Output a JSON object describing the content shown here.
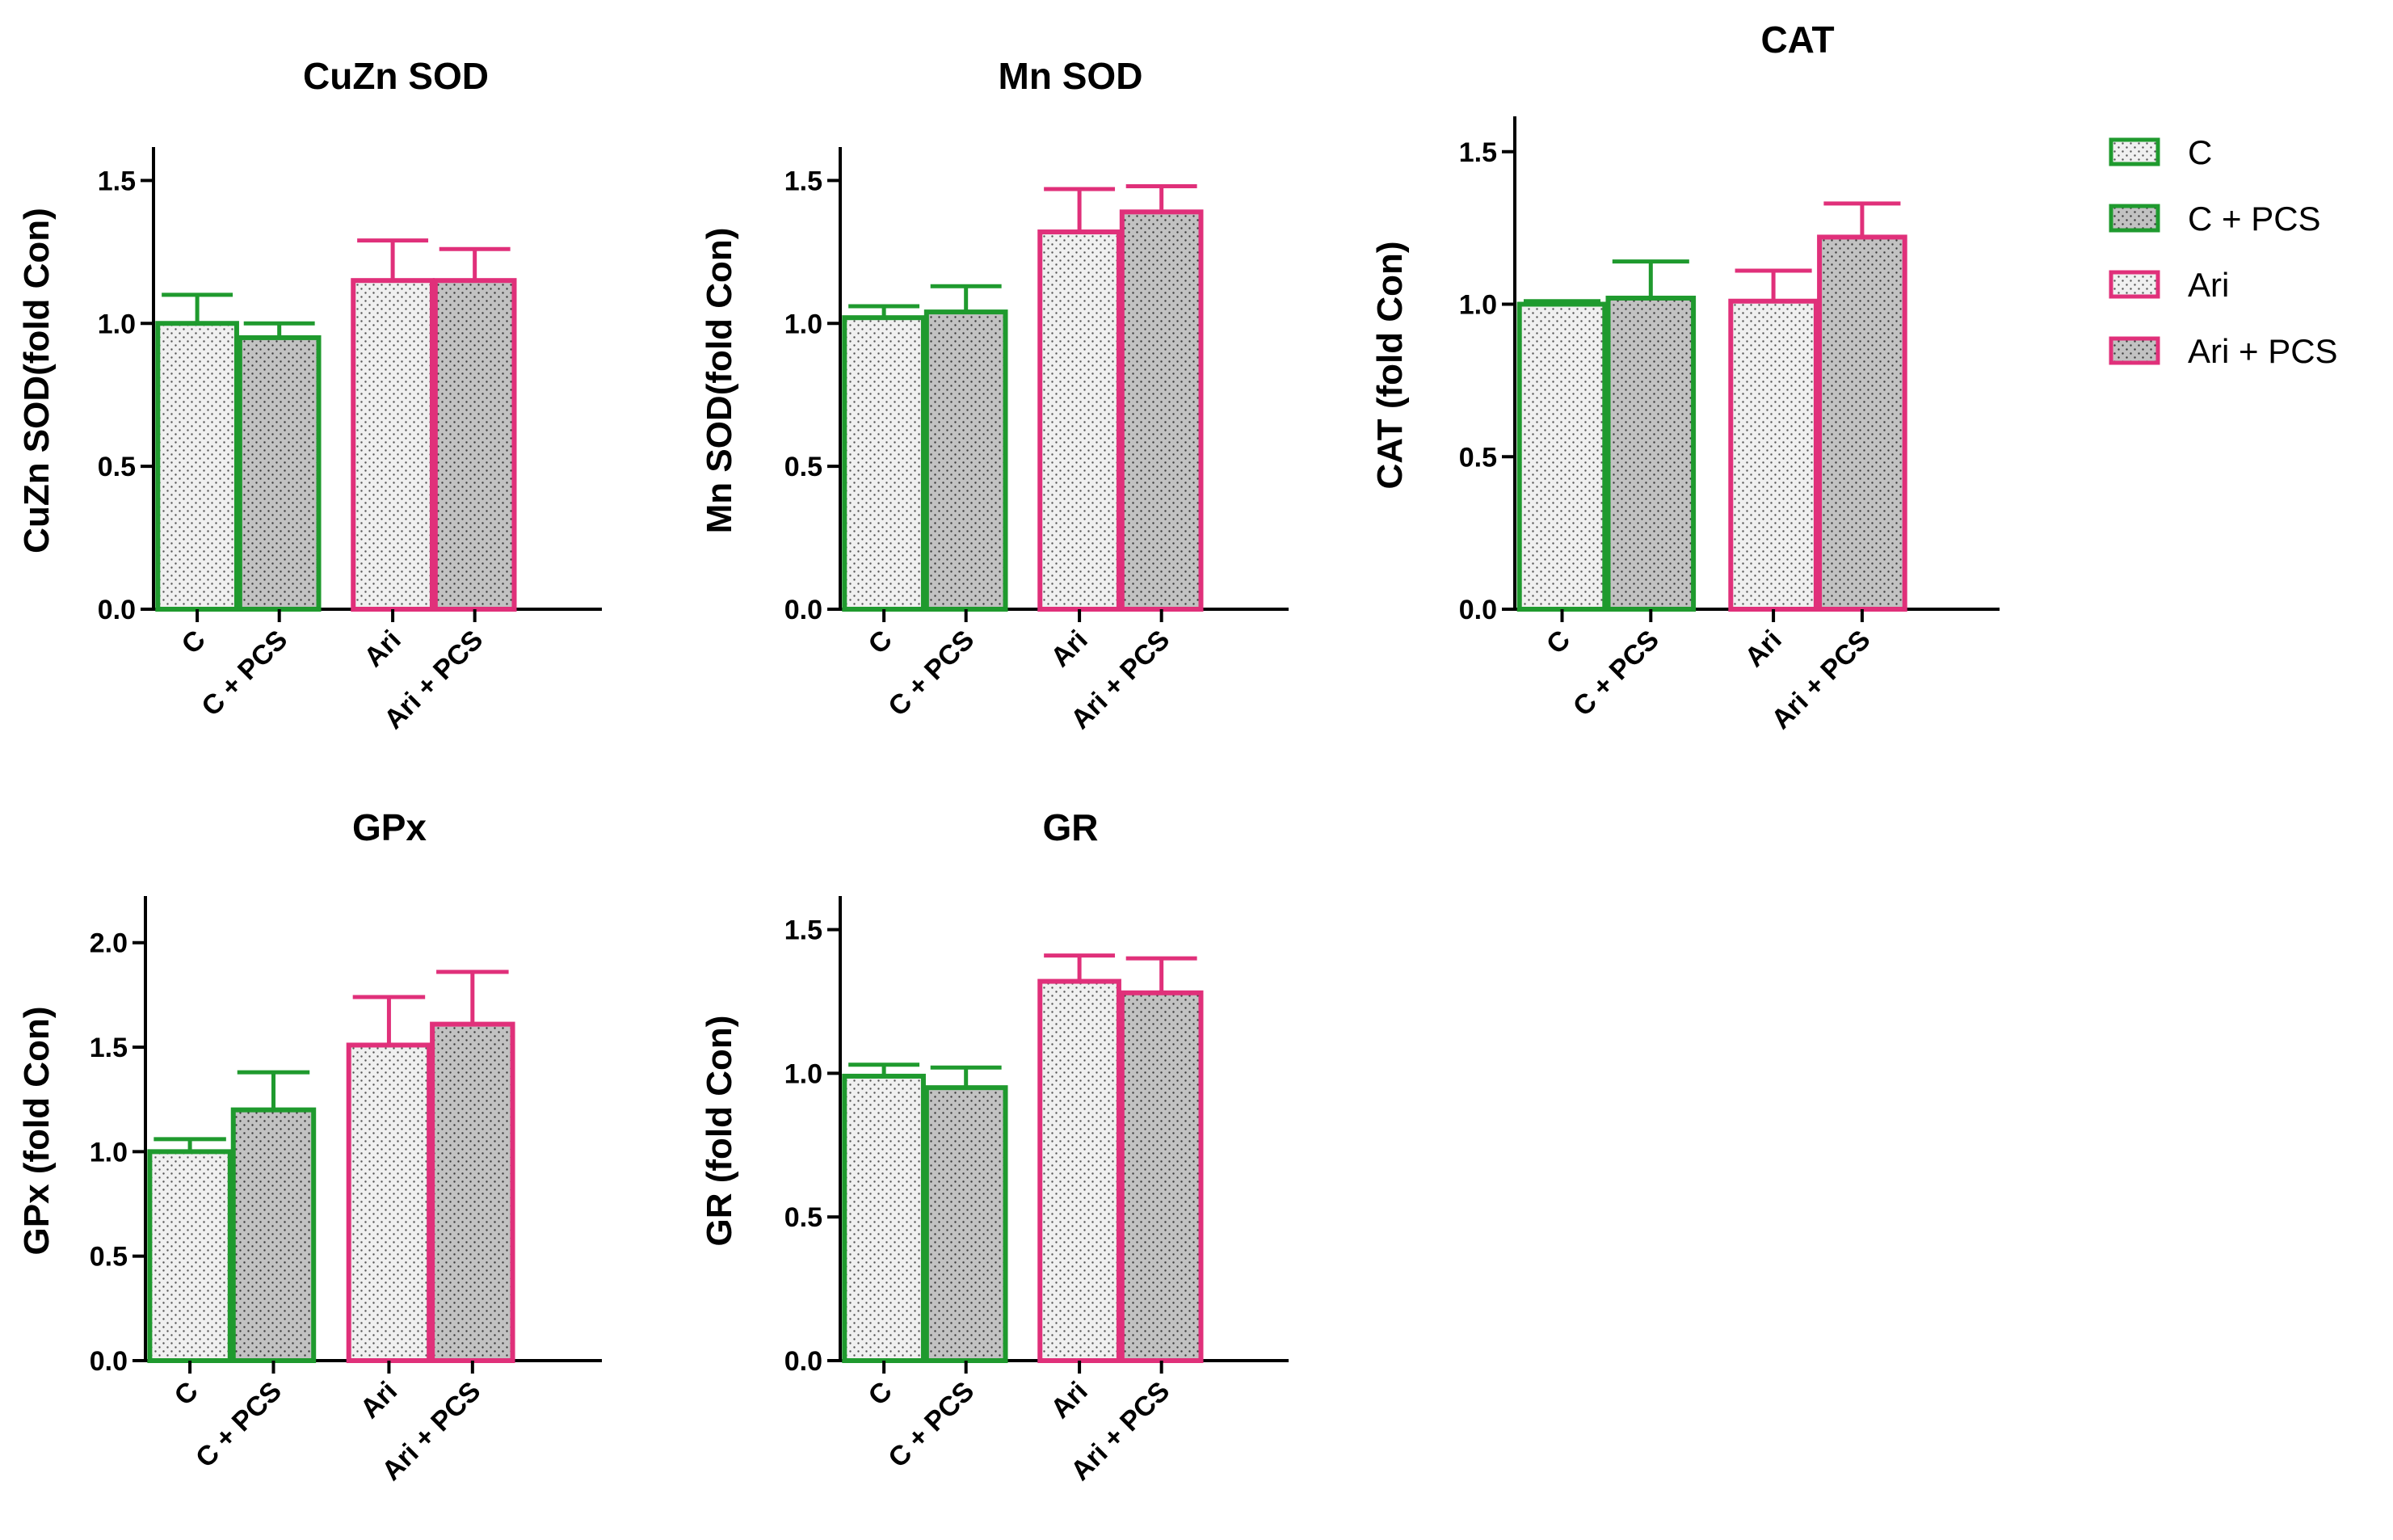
{
  "legend": {
    "placement": "right",
    "items": [
      {
        "label": "C",
        "edge": "#1f9a2e",
        "fill": "light"
      },
      {
        "label": "C + PCS",
        "edge": "#1f9a2e",
        "fill": "gray"
      },
      {
        "label": "Ari",
        "edge": "#e0307a",
        "fill": "light"
      },
      {
        "label": "Ari + PCS",
        "edge": "#e0307a",
        "fill": "gray"
      }
    ]
  },
  "colors": {
    "green": "#1f9a2e",
    "pink": "#e0307a",
    "light_fill": "#eeeeee",
    "gray_fill": "#c4c4c4",
    "axis": "#000000"
  },
  "chart_data": [
    {
      "type": "bar",
      "title": "CuZn SOD",
      "ylabel": "CuZn SOD(fold Con)",
      "categories": [
        "C",
        "C + PCS",
        "Ari",
        "Ari + PCS"
      ],
      "values": [
        1.0,
        0.95,
        1.15,
        1.15
      ],
      "errors": [
        0.1,
        0.05,
        0.14,
        0.11
      ],
      "ylim": [
        0,
        1.6
      ],
      "yticks": [
        "0.0",
        "0.5",
        "1.0",
        "1.5"
      ]
    },
    {
      "type": "bar",
      "title": "Mn SOD",
      "ylabel": "Mn SOD(fold Con)",
      "categories": [
        "C",
        "C + PCS",
        "Ari",
        "Ari + PCS"
      ],
      "values": [
        1.02,
        1.04,
        1.32,
        1.39
      ],
      "errors": [
        0.04,
        0.09,
        0.15,
        0.09
      ],
      "ylim": [
        0,
        1.6
      ],
      "yticks": [
        "0.0",
        "0.5",
        "1.0",
        "1.5"
      ]
    },
    {
      "type": "bar",
      "title": "CAT",
      "ylabel": "CAT (fold Con)",
      "categories": [
        "C",
        "C + PCS",
        "Ari",
        "Ari + PCS"
      ],
      "values": [
        1.0,
        1.02,
        1.01,
        1.22
      ],
      "errors": [
        0.01,
        0.12,
        0.1,
        0.11
      ],
      "ylim": [
        0,
        1.6
      ],
      "yticks": [
        "0.0",
        "0.5",
        "1.0",
        "1.5"
      ]
    },
    {
      "type": "bar",
      "title": "GPx",
      "ylabel": "GPx (fold Con)",
      "categories": [
        "C",
        "C + PCS",
        "Ari",
        "Ari + PCS"
      ],
      "values": [
        1.0,
        1.2,
        1.51,
        1.61
      ],
      "errors": [
        0.06,
        0.18,
        0.23,
        0.25
      ],
      "ylim": [
        0,
        2.2
      ],
      "yticks": [
        "0.0",
        "0.5",
        "1.0",
        "1.5",
        "2.0"
      ]
    },
    {
      "type": "bar",
      "title": "GR",
      "ylabel": "GR (fold Con)",
      "categories": [
        "C",
        "C + PCS",
        "Ari",
        "Ari + PCS"
      ],
      "values": [
        0.99,
        0.95,
        1.32,
        1.28
      ],
      "errors": [
        0.04,
        0.07,
        0.09,
        0.12
      ],
      "ylim": [
        0,
        1.6
      ],
      "yticks": [
        "0.0",
        "0.5",
        "1.0",
        "1.5"
      ]
    }
  ]
}
